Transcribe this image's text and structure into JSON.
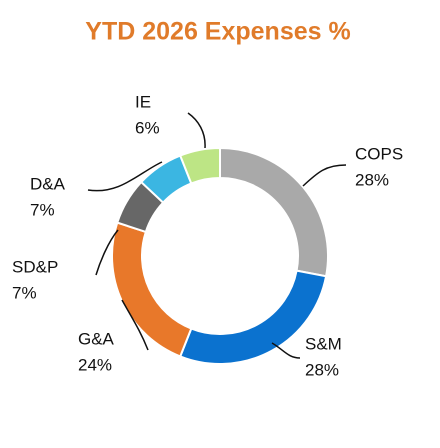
{
  "chart_data": {
    "type": "donut",
    "title": "YTD 2026 Expenses %",
    "categories": [
      "COPS",
      "S&M",
      "G&A",
      "SD&P",
      "D&A",
      "IE"
    ],
    "values": [
      28,
      28,
      24,
      7,
      7,
      6
    ],
    "value_labels": [
      "28%",
      "28%",
      "24%",
      "7%",
      "7%",
      "6%"
    ],
    "colors": [
      "#a9a9a9",
      "#0b72cf",
      "#e8782a",
      "#676767",
      "#3bb6e2",
      "#bde585"
    ]
  }
}
